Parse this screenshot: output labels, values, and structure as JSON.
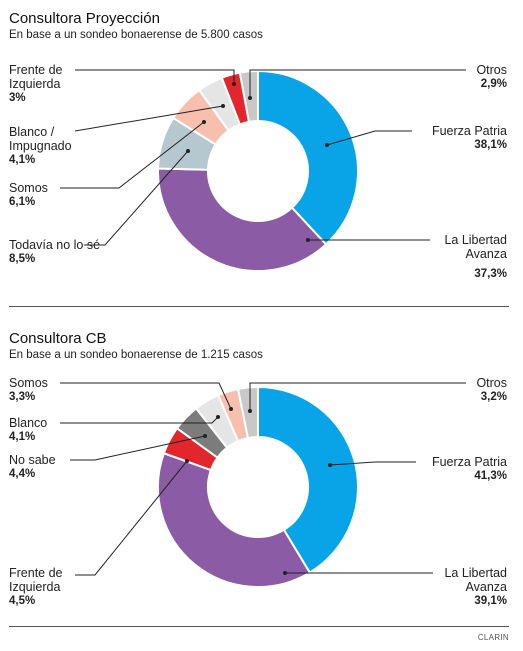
{
  "chart_data": [
    {
      "type": "pie",
      "title": "Consultora Proyección",
      "subtitle": "En base a un sondeo bonaerense de 5.800 casos",
      "slices": [
        {
          "name": "Fuerza Patria",
          "value": "38,1%",
          "pct": 38.1,
          "color": "#09a4e8"
        },
        {
          "name": "La Libertad Avanza",
          "value": "37,3%",
          "pct": 37.3,
          "color": "#8b5ba6"
        },
        {
          "name": "Todavía no lo sé",
          "value": "8,5%",
          "pct": 8.5,
          "color": "#b5c7cf"
        },
        {
          "name": "Somos",
          "value": "6,1%",
          "pct": 6.1,
          "color": "#f7bfae"
        },
        {
          "name": "Blanco / Impugnado",
          "value": "4,1%",
          "pct": 4.1,
          "color": "#e5e5e5"
        },
        {
          "name": "Frente de Izquierda",
          "value": "3%",
          "pct": 3.0,
          "color": "#e3262b"
        },
        {
          "name": "Otros",
          "value": "2,9%",
          "pct": 2.9,
          "color": "#c8c8c8"
        }
      ]
    },
    {
      "type": "pie",
      "title": "Consultora CB",
      "subtitle": "En base a un sondeo bonaerense de 1.215 casos",
      "slices": [
        {
          "name": "Fuerza Patria",
          "value": "41,3%",
          "pct": 41.3,
          "color": "#09a4e8"
        },
        {
          "name": "La Libertad Avanza",
          "value": "39,1%",
          "pct": 39.1,
          "color": "#8b5ba6"
        },
        {
          "name": "Frente de Izquierda",
          "value": "4,5%",
          "pct": 4.5,
          "color": "#e3262b"
        },
        {
          "name": "No sabe",
          "value": "4,4%",
          "pct": 4.4,
          "color": "#7c7c7c"
        },
        {
          "name": "Blanco",
          "value": "4,1%",
          "pct": 4.1,
          "color": "#e5e5e5"
        },
        {
          "name": "Somos",
          "value": "3,3%",
          "pct": 3.3,
          "color": "#f7bfae"
        },
        {
          "name": "Otros",
          "value": "3,2%",
          "pct": 3.2,
          "color": "#c8c8c8"
        }
      ]
    }
  ],
  "labels1": {
    "fdi": "Frente de\nIzquierda",
    "fdi_v": "3%",
    "blanco": "Blanco /\nImpugnado",
    "blanco_v": "4,1%",
    "somos": "Somos",
    "somos_v": "6,1%",
    "tnls": "Todavía no lo sé",
    "tnls_v": "8,5%",
    "otros": "Otros",
    "otros_v": "2,9%",
    "fp": "Fuerza Patria",
    "fp_v": "38,1%",
    "lla": "La Libertad\nAvanza",
    "lla_v": "37,3%"
  },
  "labels2": {
    "somos": "Somos",
    "somos_v": "3,3%",
    "blanco": "Blanco",
    "blanco_v": "4,1%",
    "nosabe": "No sabe",
    "nosabe_v": "4,4%",
    "fdi": "Frente de\nIzquierda",
    "fdi_v": "4,5%",
    "otros": "Otros",
    "otros_v": "3,2%",
    "fp": "Fuerza Patria",
    "fp_v": "41,3%",
    "lla": "La Libertad\nAvanza",
    "lla_v": "39,1%"
  },
  "credit": "CLARIN"
}
